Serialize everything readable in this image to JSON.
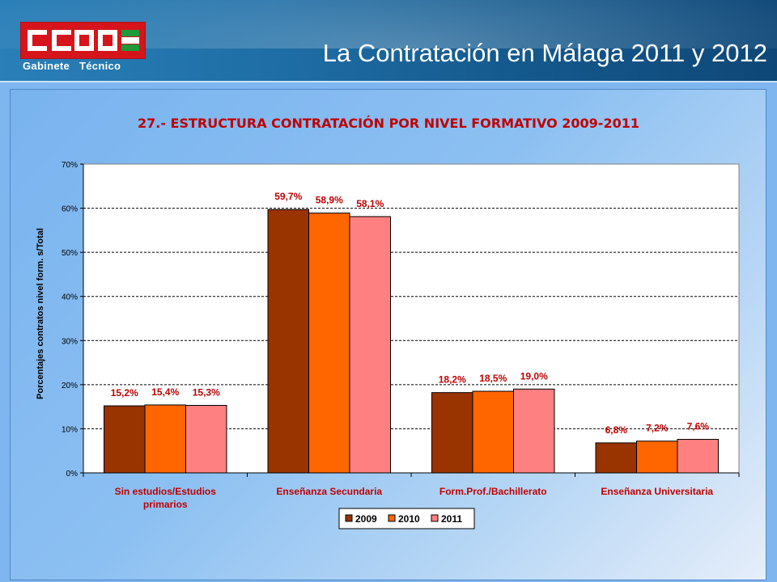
{
  "header": {
    "org_sub": [
      "Gabinete",
      "Técnico"
    ],
    "title": "La Contratación en Málaga 2011 y 2012"
  },
  "colors": {
    "logo_red": "#d6141c",
    "series_2009": "#993300",
    "series_2010": "#ff6600",
    "series_2011": "#ff8080",
    "title_red": "#c00000"
  },
  "chart_data": {
    "type": "bar",
    "title": "27.- ESTRUCTURA CONTRATACIÓN POR NIVEL FORMATIVO 2009-2011",
    "ylabel": "Porcentajes contratos nivel form. s/Total",
    "xlabel": "",
    "categories": [
      [
        "Sin estudios/Estudios",
        "primarios"
      ],
      [
        "Enseñanza Secundaria"
      ],
      [
        "Form.Prof./Bachillerato"
      ],
      [
        "Enseñanza Universitaria"
      ]
    ],
    "ylim": [
      0,
      70
    ],
    "yticks": [
      "0%",
      "10%",
      "20%",
      "30%",
      "40%",
      "50%",
      "60%",
      "70%"
    ],
    "grid": true,
    "legend_position": "bottom",
    "series": [
      {
        "name": "2009",
        "values": [
          15.2,
          59.7,
          18.2,
          6.8
        ],
        "labels": [
          "15,2%",
          "59,7%",
          "18,2%",
          "6,8%"
        ]
      },
      {
        "name": "2010",
        "values": [
          15.4,
          58.9,
          18.5,
          7.2
        ],
        "labels": [
          "15,4%",
          "58,9%",
          "18,5%",
          "7,2%"
        ]
      },
      {
        "name": "2011",
        "values": [
          15.3,
          58.1,
          19.0,
          7.6
        ],
        "labels": [
          "15,3%",
          "58,1%",
          "19,0%",
          "7,6%"
        ]
      }
    ]
  }
}
